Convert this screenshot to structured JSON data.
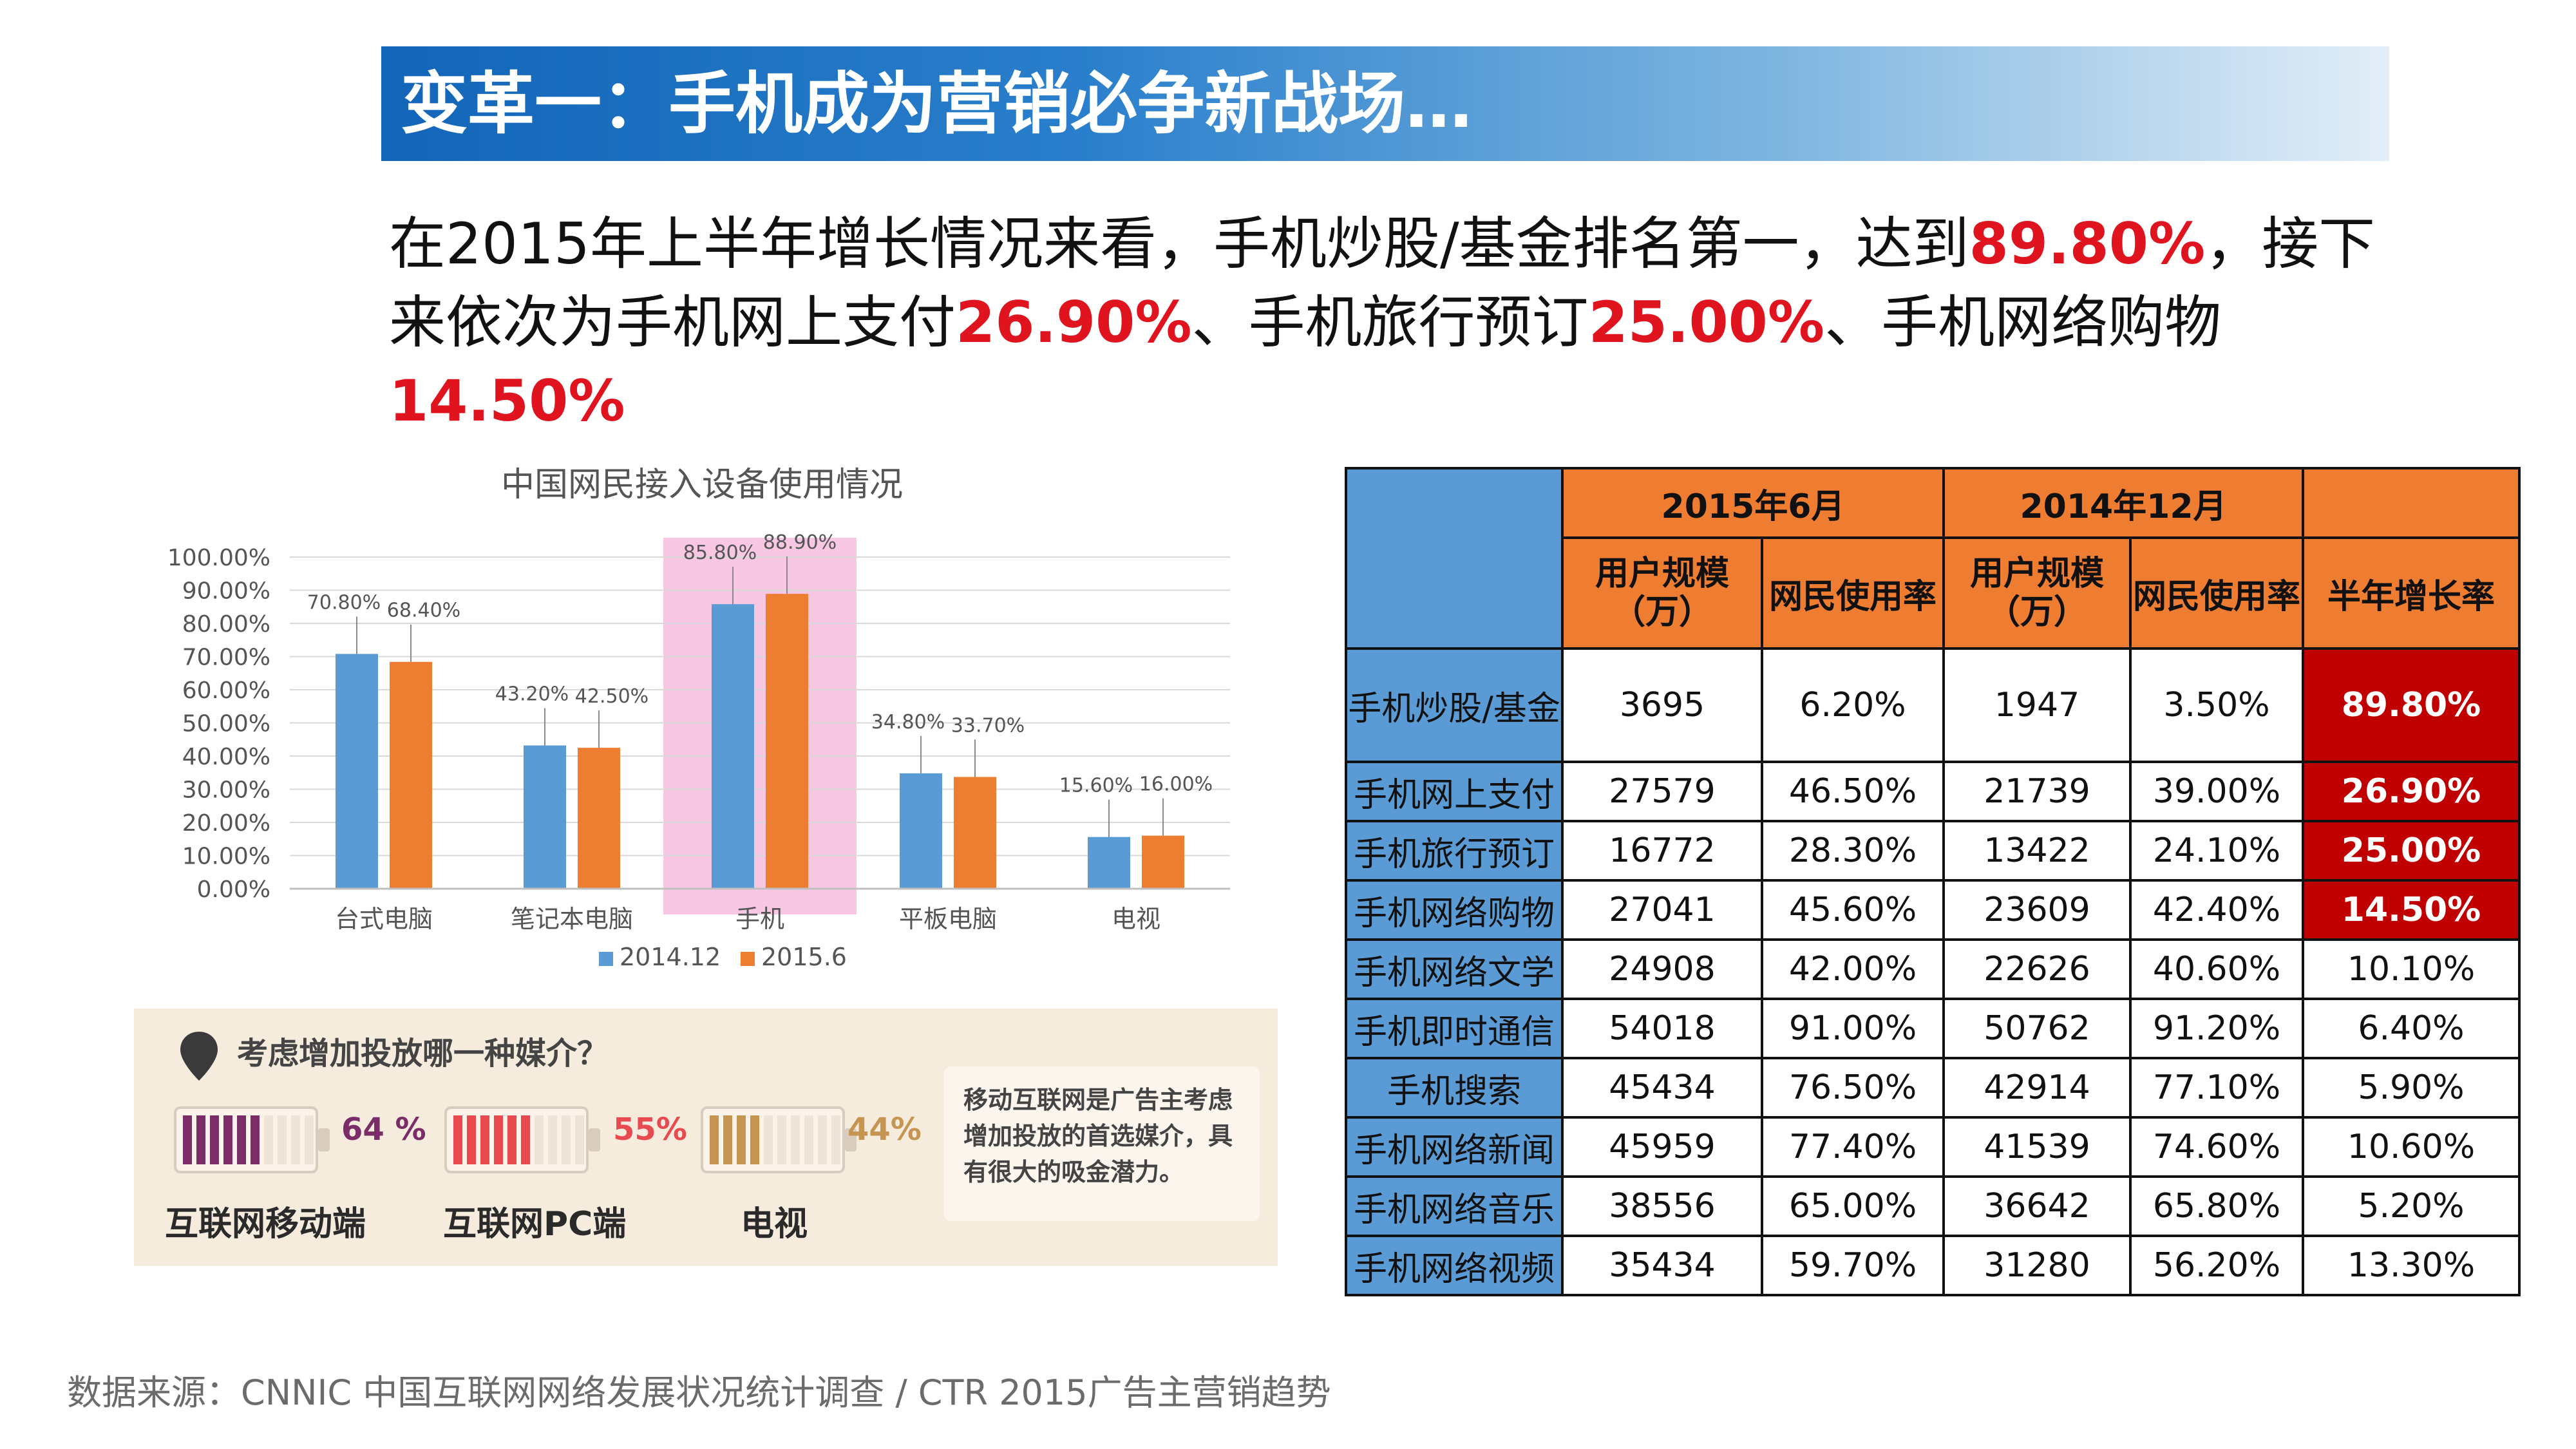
{
  "title": "变革一：手机成为营销必争新战场…",
  "summary": {
    "l1_a": "在2015年上半年增长情况来看，手机炒股/基金排名第一，达到",
    "l1_h": "89.80%",
    "l1_b": "，接下",
    "l2_a": "来依次为手机网上支付",
    "l2_h1": "26.90%",
    "l2_b": "、手机旅行预订",
    "l2_h2": "25.00%",
    "l2_c": "、手机网络购物",
    "l2_h3": "14.50%"
  },
  "chart_data": {
    "type": "bar",
    "title": "中国网民接入设备使用情况",
    "categories": [
      "台式电脑",
      "笔记本电脑",
      "手机",
      "平板电脑",
      "电视"
    ],
    "series": [
      {
        "name": "2014.12",
        "values": [
          70.8,
          43.2,
          85.8,
          34.8,
          15.6
        ],
        "labels": [
          "70.80%",
          "43.20%",
          "85.80%",
          "34.80%",
          "15.60%"
        ],
        "color": "#5b9bd5"
      },
      {
        "name": "2015.6",
        "values": [
          68.4,
          42.5,
          88.9,
          33.7,
          16.0
        ],
        "labels": [
          "68.40%",
          "42.50%",
          "88.90%",
          "33.70%",
          "16.00%"
        ],
        "color": "#ed7d31"
      }
    ],
    "ylim": [
      0,
      100
    ],
    "yticks": [
      "0.00%",
      "10.00%",
      "20.00%",
      "30.00%",
      "40.00%",
      "50.00%",
      "60.00%",
      "70.00%",
      "80.00%",
      "90.00%",
      "100.00%"
    ],
    "highlight_category": "手机",
    "highlight_color": "#f8c7e3",
    "grid": true,
    "legend_position": "bottom"
  },
  "media": {
    "question": "考虑增加投放哪一种媒介？",
    "items": [
      {
        "label": "互联网移动端",
        "percent": "64 %",
        "level": 0.64,
        "color": "#7b2d67"
      },
      {
        "label": "互联网PC端",
        "percent": "55%",
        "level": 0.55,
        "color": "#e84a4f"
      },
      {
        "label": "电视",
        "percent": "44%",
        "level": 0.44,
        "color": "#c79552"
      }
    ],
    "note": "移动互联网是广告主考虑增加投放的首选媒介，具有很大的吸金潜力。"
  },
  "table": {
    "period_2015": "2015年6月",
    "period_2014": "2014年12月",
    "h_users": "用户规模（万）",
    "h_rate": "网民使用率",
    "h_users2": "用户规模（万）",
    "h_rate2": "网民使用率",
    "h_growth": "半年增长率",
    "rows": [
      {
        "name": "手机炒股/基金",
        "u2015": "3695",
        "r2015": "6.20%",
        "u2014": "1947",
        "r2014": "3.50%",
        "growth": "89.80%"
      },
      {
        "name": "手机网上支付",
        "u2015": "27579",
        "r2015": "46.50%",
        "u2014": "21739",
        "r2014": "39.00%",
        "growth": "26.90%"
      },
      {
        "name": "手机旅行预订",
        "u2015": "16772",
        "r2015": "28.30%",
        "u2014": "13422",
        "r2014": "24.10%",
        "growth": "25.00%"
      },
      {
        "name": "手机网络购物",
        "u2015": "27041",
        "r2015": "45.60%",
        "u2014": "23609",
        "r2014": "42.40%",
        "growth": "14.50%"
      },
      {
        "name": "手机网络文学",
        "u2015": "24908",
        "r2015": "42.00%",
        "u2014": "22626",
        "r2014": "40.60%",
        "growth": "10.10%"
      },
      {
        "name": "手机即时通信",
        "u2015": "54018",
        "r2015": "91.00%",
        "u2014": "50762",
        "r2014": "91.20%",
        "growth": "6.40%"
      },
      {
        "name": "手机搜索",
        "u2015": "45434",
        "r2015": "76.50%",
        "u2014": "42914",
        "r2014": "77.10%",
        "growth": "5.90%"
      },
      {
        "name": "手机网络新闻",
        "u2015": "45959",
        "r2015": "77.40%",
        "u2014": "41539",
        "r2014": "74.60%",
        "growth": "10.60%"
      },
      {
        "name": "手机网络音乐",
        "u2015": "38556",
        "r2015": "65.00%",
        "u2014": "36642",
        "r2014": "65.80%",
        "growth": "5.20%"
      },
      {
        "name": "手机网络视频",
        "u2015": "35434",
        "r2015": "59.70%",
        "u2014": "31280",
        "r2014": "56.20%",
        "growth": "13.30%"
      }
    ]
  },
  "source": "数据来源：CNNIC 中国互联网网络发展状况统计调查  / CTR 2015广告主营销趋势"
}
